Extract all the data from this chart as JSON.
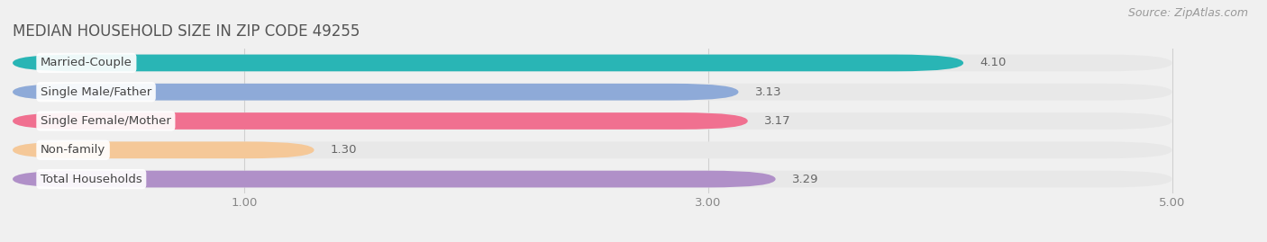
{
  "title": "MEDIAN HOUSEHOLD SIZE IN ZIP CODE 49255",
  "source": "Source: ZipAtlas.com",
  "categories": [
    "Married-Couple",
    "Single Male/Father",
    "Single Female/Mother",
    "Non-family",
    "Total Households"
  ],
  "values": [
    4.1,
    3.13,
    3.17,
    1.3,
    3.29
  ],
  "bar_colors": [
    "#29b5b5",
    "#8eaad8",
    "#f07090",
    "#f5c898",
    "#b090c8"
  ],
  "xlim_max": 5.3,
  "xlim_data_max": 5.0,
  "xticks": [
    1.0,
    3.0,
    5.0
  ],
  "title_fontsize": 12,
  "label_fontsize": 9.5,
  "value_fontsize": 9.5,
  "source_fontsize": 9,
  "background_color": "#f0f0f0",
  "bar_track_color": "#e8e8e8",
  "title_color": "#555555",
  "label_color": "#444444",
  "value_color": "#666666",
  "source_color": "#999999",
  "grid_color": "#d0d0d0"
}
